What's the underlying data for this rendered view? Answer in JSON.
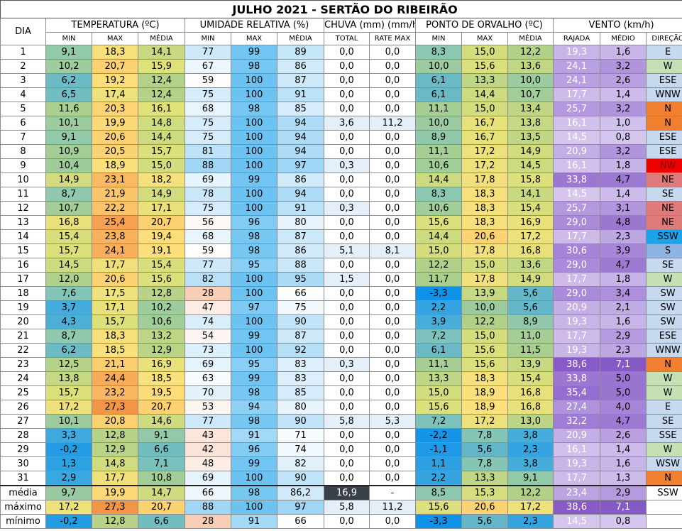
{
  "title": "JULHO 2021 - SERTÃO DO RIBEIRÃO",
  "headers": {
    "day": "DIA",
    "groups": [
      {
        "label": "TEMPERATURA (ºC)",
        "span": 3
      },
      {
        "label": "UMIDADE RELATIVA (%)",
        "span": 3
      },
      {
        "label": "CHUVA (mm) (mm/h)",
        "span": 2
      },
      {
        "label": "PONTO DE ORVALHO (ºC)",
        "span": 3
      },
      {
        "label": "VENTO (km/h)",
        "span": 3
      }
    ],
    "sub": [
      "MIN",
      "MAX",
      "MÉDIA",
      "MIN",
      "MAX",
      "MÉDIA",
      "TOTAL",
      "RATE MAX",
      "MIN",
      "MAX",
      "MÉDIA",
      "RAJADA",
      "MÉDIO",
      "DIREÇÃO"
    ]
  },
  "rows": [
    [
      "1",
      "9,1",
      "18,3",
      "14,1",
      "77",
      "99",
      "89",
      "0,0",
      "0,0",
      "8,3",
      "15,0",
      "12,2",
      "19,3",
      "1,6",
      "E"
    ],
    [
      "2",
      "10,2",
      "20,7",
      "15,9",
      "67",
      "98",
      "86",
      "0,0",
      "0,0",
      "10,0",
      "15,6",
      "13,6",
      "24,1",
      "3,2",
      "W"
    ],
    [
      "3",
      "6,2",
      "19,2",
      "12,4",
      "59",
      "100",
      "87",
      "0,0",
      "0,0",
      "6,1",
      "13,3",
      "10,0",
      "24,1",
      "2,6",
      "ESE"
    ],
    [
      "4",
      "6,5",
      "17,4",
      "12,4",
      "75",
      "100",
      "91",
      "0,0",
      "0,0",
      "6,1",
      "14,4",
      "10,7",
      "17,7",
      "1,4",
      "WNW"
    ],
    [
      "5",
      "11,6",
      "20,3",
      "16,1",
      "68",
      "98",
      "85",
      "0,0",
      "0,0",
      "11,1",
      "15,0",
      "13,4",
      "25,7",
      "3,2",
      "N"
    ],
    [
      "6",
      "10,1",
      "19,9",
      "14,8",
      "75",
      "100",
      "94",
      "3,6",
      "11,2",
      "10,0",
      "16,7",
      "13,8",
      "16,1",
      "1,0",
      "N"
    ],
    [
      "7",
      "9,1",
      "20,6",
      "14,4",
      "75",
      "100",
      "94",
      "0,0",
      "0,0",
      "8,9",
      "16,7",
      "13,5",
      "14,5",
      "0,8",
      "ESE"
    ],
    [
      "8",
      "10,9",
      "20,5",
      "15,7",
      "81",
      "100",
      "94",
      "0,0",
      "0,0",
      "11,1",
      "17,2",
      "14,9",
      "20,9",
      "3,2",
      "ESE"
    ],
    [
      "9",
      "10,4",
      "18,9",
      "15,0",
      "88",
      "100",
      "97",
      "0,3",
      "0,0",
      "10,6",
      "17,2",
      "14,5",
      "16,1",
      "1,8",
      "NW"
    ],
    [
      "10",
      "14,9",
      "23,1",
      "18,2",
      "69",
      "99",
      "86",
      "0,0",
      "0,0",
      "14,4",
      "17,8",
      "15,8",
      "33,8",
      "4,7",
      "NE"
    ],
    [
      "11",
      "8,7",
      "21,9",
      "14,9",
      "78",
      "100",
      "94",
      "0,0",
      "0,0",
      "8,3",
      "18,3",
      "14,1",
      "14,5",
      "1,4",
      "SE"
    ],
    [
      "12",
      "10,7",
      "22,2",
      "17,1",
      "75",
      "100",
      "91",
      "0,3",
      "0,0",
      "10,6",
      "18,3",
      "15,4",
      "25,7",
      "3,1",
      "NE"
    ],
    [
      "13",
      "16,8",
      "25,4",
      "20,7",
      "56",
      "96",
      "80",
      "0,0",
      "0,0",
      "15,6",
      "18,3",
      "16,9",
      "29,0",
      "4,8",
      "NE"
    ],
    [
      "14",
      "15,4",
      "23,8",
      "19,4",
      "68",
      "98",
      "87",
      "0,0",
      "0,0",
      "14,4",
      "20,6",
      "17,2",
      "17,7",
      "2,3",
      "SSW"
    ],
    [
      "15",
      "15,7",
      "24,1",
      "19,1",
      "59",
      "98",
      "86",
      "5,1",
      "8,1",
      "15,0",
      "17,8",
      "16,8",
      "30,6",
      "3,9",
      "S"
    ],
    [
      "16",
      "14,5",
      "17,7",
      "15,4",
      "77",
      "95",
      "88",
      "0,0",
      "0,0",
      "12,2",
      "15,0",
      "13,6",
      "29,0",
      "4,7",
      "SE"
    ],
    [
      "17",
      "12,0",
      "20,6",
      "15,6",
      "82",
      "100",
      "95",
      "1,5",
      "0,0",
      "11,7",
      "17,8",
      "14,9",
      "17,7",
      "1,8",
      "W"
    ],
    [
      "18",
      "7,6",
      "17,5",
      "12,8",
      "28",
      "100",
      "66",
      "0,0",
      "0,0",
      "-3,3",
      "13,9",
      "5,6",
      "29,0",
      "3,4",
      "SW"
    ],
    [
      "19",
      "3,7",
      "17,1",
      "10,2",
      "47",
      "97",
      "75",
      "0,0",
      "0,0",
      "2,2",
      "10,0",
      "5,6",
      "20,9",
      "2,1",
      "SW"
    ],
    [
      "20",
      "4,3",
      "15,7",
      "10,6",
      "74",
      "100",
      "90",
      "0,0",
      "0,0",
      "3,9",
      "12,2",
      "8,9",
      "19,3",
      "1,6",
      "SW"
    ],
    [
      "21",
      "8,7",
      "18,3",
      "13,2",
      "54",
      "99",
      "87",
      "0,0",
      "0,0",
      "7,2",
      "15,0",
      "11,0",
      "17,7",
      "2,9",
      "ESE"
    ],
    [
      "22",
      "6,2",
      "18,5",
      "12,9",
      "73",
      "100",
      "92",
      "0,0",
      "0,0",
      "6,1",
      "15,6",
      "11,5",
      "19,3",
      "2,3",
      "WNW"
    ],
    [
      "23",
      "12,5",
      "21,1",
      "16,9",
      "69",
      "95",
      "83",
      "0,3",
      "0,0",
      "11,1",
      "15,6",
      "13,9",
      "38,6",
      "7,1",
      "N"
    ],
    [
      "24",
      "13,8",
      "24,4",
      "18,5",
      "63",
      "99",
      "83",
      "0,0",
      "0,0",
      "13,3",
      "18,3",
      "15,4",
      "33,8",
      "5,0",
      "W"
    ],
    [
      "25",
      "15,7",
      "23,2",
      "19,5",
      "70",
      "98",
      "85",
      "0,0",
      "0,0",
      "15,0",
      "18,9",
      "16,8",
      "35,4",
      "5,0",
      "W"
    ],
    [
      "26",
      "17,2",
      "27,3",
      "20,7",
      "53",
      "94",
      "80",
      "0,0",
      "0,0",
      "15,6",
      "18,9",
      "16,8",
      "27,4",
      "4,0",
      "E"
    ],
    [
      "27",
      "10,1",
      "20,8",
      "14,6",
      "77",
      "98",
      "90",
      "5,8",
      "5,3",
      "7,2",
      "17,2",
      "13,0",
      "32,2",
      "4,7",
      "SE"
    ],
    [
      "28",
      "3,3",
      "12,8",
      "9,1",
      "43",
      "91",
      "71",
      "0,0",
      "0,0",
      "-2,2",
      "7,8",
      "3,8",
      "20,9",
      "2,6",
      "SSE"
    ],
    [
      "29",
      "-0,2",
      "12,9",
      "6,6",
      "42",
      "96",
      "74",
      "0,0",
      "0,0",
      "-1,1",
      "5,6",
      "2,3",
      "16,1",
      "1,4",
      "W"
    ],
    [
      "30",
      "1,3",
      "14,8",
      "7,1",
      "48",
      "99",
      "82",
      "0,0",
      "0,0",
      "1,1",
      "7,8",
      "3,8",
      "19,3",
      "1,6",
      "WSW"
    ],
    [
      "31",
      "2,9",
      "17,7",
      "10,8",
      "69",
      "100",
      "90",
      "0,0",
      "0,0",
      "2,2",
      "13,3",
      "9,1",
      "17,7",
      "1,3",
      "N"
    ]
  ],
  "footer": [
    [
      "média",
      "9,7",
      "19,9",
      "14,7",
      "66",
      "98",
      "86,2",
      "16,9",
      "-",
      "8,5",
      "15,3",
      "12,2",
      "23,4",
      "2,9",
      "SSW"
    ],
    [
      "máximo",
      "17,2",
      "27,3",
      "20,7",
      "88",
      "100",
      "97",
      "5,8",
      "11,2",
      "15,6",
      "20,6",
      "17,2",
      "38,6",
      "7,1",
      ""
    ],
    [
      "mínimo",
      "-0,2",
      "12,8",
      "6,6",
      "28",
      "91",
      "66",
      "0,0",
      "0,0",
      "-3,3",
      "5,6",
      "2,3",
      "14,5",
      "0,8",
      ""
    ]
  ],
  "colors": {
    "dir_default": "#c6d9ef",
    "dir_w": "#c4e0b4",
    "dir_n": "#f07f2f",
    "dir_nw": "#ee0000",
    "dir_ne": "#e07b7b",
    "dir_ssw": "#1aa4ec",
    "dir_s": "#8fb4e3",
    "rain_total_avg": "#3a404a"
  }
}
